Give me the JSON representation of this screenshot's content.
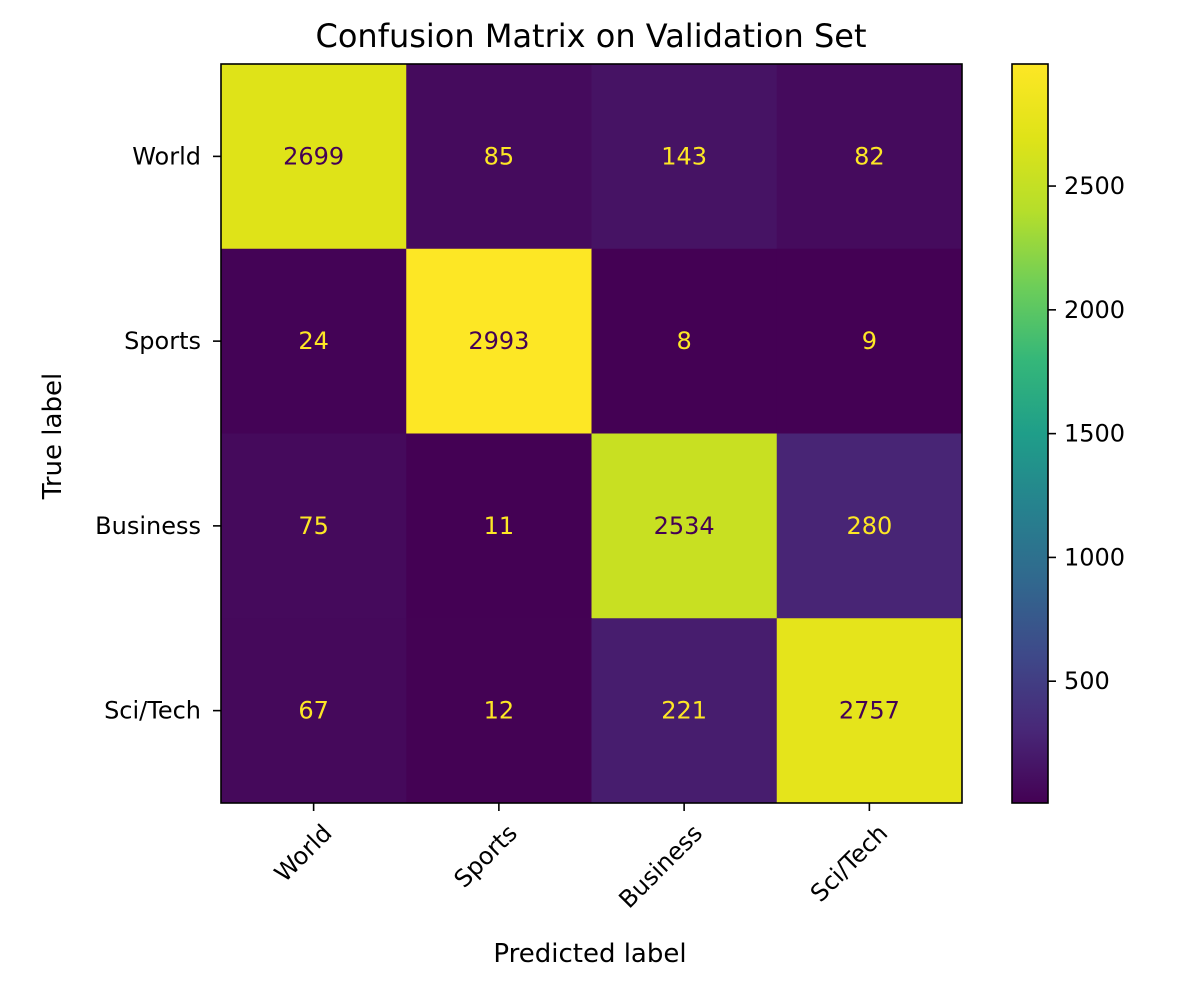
{
  "chart_data": {
    "type": "heatmap",
    "title": "Confusion Matrix on Validation Set",
    "xlabel": "Predicted label",
    "ylabel": "True label",
    "x_categories": [
      "World",
      "Sports",
      "Business",
      "Sci/Tech"
    ],
    "y_categories": [
      "World",
      "Sports",
      "Business",
      "Sci/Tech"
    ],
    "matrix": [
      [
        2699,
        85,
        143,
        82
      ],
      [
        24,
        2993,
        8,
        9
      ],
      [
        75,
        11,
        2534,
        280
      ],
      [
        67,
        12,
        221,
        2757
      ]
    ],
    "colormap": "viridis",
    "colorbar": {
      "ticks": [
        500,
        1000,
        1500,
        2000,
        2500
      ],
      "tick_labels": [
        "500",
        "1000",
        "1500",
        "2000",
        "2500"
      ],
      "range": [
        8,
        2993
      ]
    },
    "x_tick_rotation_deg": 45,
    "grid": false
  }
}
